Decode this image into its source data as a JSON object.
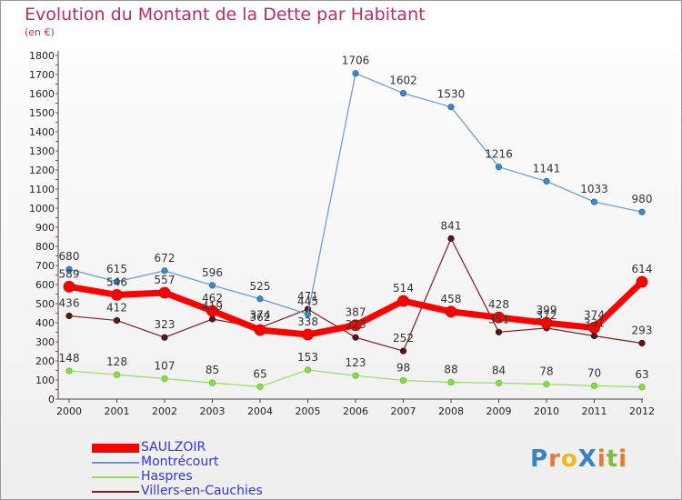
{
  "title": "Evolution du Montant de la Dette par Habitant",
  "unit_label": "(en €)",
  "logo": {
    "text": "ProXiti",
    "letters": [
      "P",
      "r",
      "o",
      "X",
      "i",
      "t",
      "i"
    ],
    "colors": [
      "#3b82c4",
      "#e8792c",
      "#f2b51b",
      "#3b82c4",
      "#e8792c",
      "#7bbf3c",
      "#e8792c"
    ]
  },
  "chart_data": {
    "type": "line",
    "title": "Evolution du Montant de la Dette par Habitant",
    "ylabel": "(en €)",
    "xlabel": "",
    "x": [
      "2000",
      "2001",
      "2002",
      "2003",
      "2004",
      "2005",
      "2006",
      "2007",
      "2008",
      "2009",
      "2010",
      "2011",
      "2012"
    ],
    "ylim": [
      0,
      1800
    ],
    "yticks": [
      0,
      100,
      200,
      300,
      400,
      500,
      600,
      700,
      800,
      900,
      1000,
      1100,
      1200,
      1300,
      1400,
      1500,
      1600,
      1700,
      1800
    ],
    "grid": false,
    "legend_position": "bottom-left",
    "series": [
      {
        "name": "SAULZOIR",
        "color": "#ff0000",
        "values": [
          589,
          546,
          557,
          462,
          362,
          338,
          387,
          514,
          458,
          428,
          399,
          374,
          614
        ]
      },
      {
        "name": "Montrécourt",
        "color": "#6699cc",
        "values": [
          680,
          615,
          672,
          596,
          525,
          445,
          1706,
          1602,
          1530,
          1216,
          1141,
          1033,
          980
        ]
      },
      {
        "name": "Haspres",
        "color": "#99dd66",
        "values": [
          148,
          128,
          107,
          85,
          65,
          153,
          123,
          98,
          88,
          84,
          78,
          70,
          63
        ]
      },
      {
        "name": "Villers-en-Cauchies",
        "color": "#772222",
        "values": [
          436,
          412,
          323,
          419,
          374,
          471,
          323,
          252,
          841,
          351,
          372,
          331,
          293
        ]
      }
    ]
  }
}
